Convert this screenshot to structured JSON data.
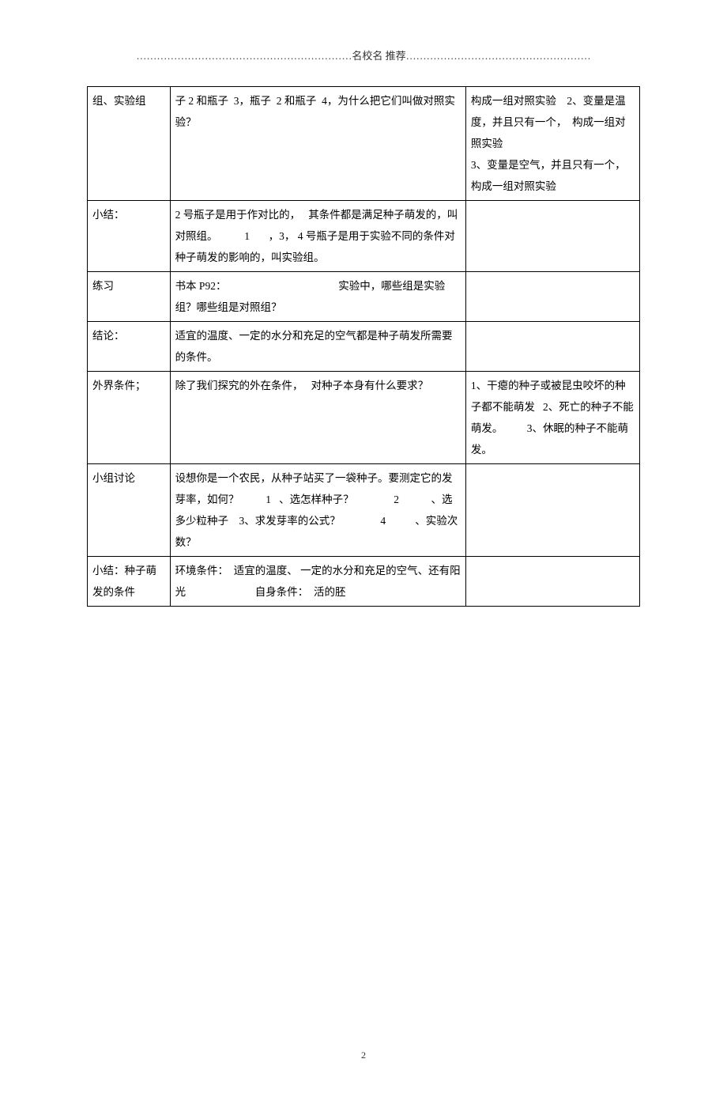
{
  "header": "名校名 推荐",
  "dots_left": "………………………………………………………",
  "dots_right": "………………………………………………",
  "rows": [
    {
      "c1": "组、实验组",
      "c2": "子 2 和瓶子  3，瓶子  2 和瓶子  4，为什么把它们叫做对照实验？",
      "c3": "构成一组对照实验    2、变量是温度，并且只有一个，  构成一组对照实验\n3、变量是空气，并且只有一个，构成一组对照实验"
    },
    {
      "c1": "小结：",
      "c2": "2 号瓶子是用于作对比的，   其条件都是满足种子萌发的，叫对照组。          1       ，3， 4 号瓶子是用于实验不同的条件对种子萌发的影响的，叫实验组。",
      "c3": ""
    },
    {
      "c1": "练习",
      "c2": "书本 P92：                                          实验中，哪些组是实验组？哪些组是对照组？\n",
      "c3": ""
    },
    {
      "c1": "结论：",
      "c2": "适宜的温度、一定的水分和充足的空气都是种子萌发所需要的条件。",
      "c3": ""
    },
    {
      "c1": "外界条件；",
      "c2": "除了我们探究的外在条件，   对种子本身有什么要求？",
      "c3": "1、干瘪的种子或被昆虫咬坏的种子都不能萌发   2、死亡的种子不能萌发。         3、休眠的种子不能萌发。"
    },
    {
      "c1": "小组讨论",
      "c2": "设想你是一个农民，从种子站买了一袋种子。要测定它的发芽率，如何？          1   、选怎样种子？               2            、选多少粒种子    3、求发芽率的公式？               4           、实验次数？",
      "c3": ""
    },
    {
      "c1": "小结：种子萌发的条件",
      "c2": "环境条件：  适宜的温度、 一定的水分和充足的空气、还有阳光                          自身条件：  活的胚",
      "c3": ""
    }
  ],
  "page_number": "2"
}
